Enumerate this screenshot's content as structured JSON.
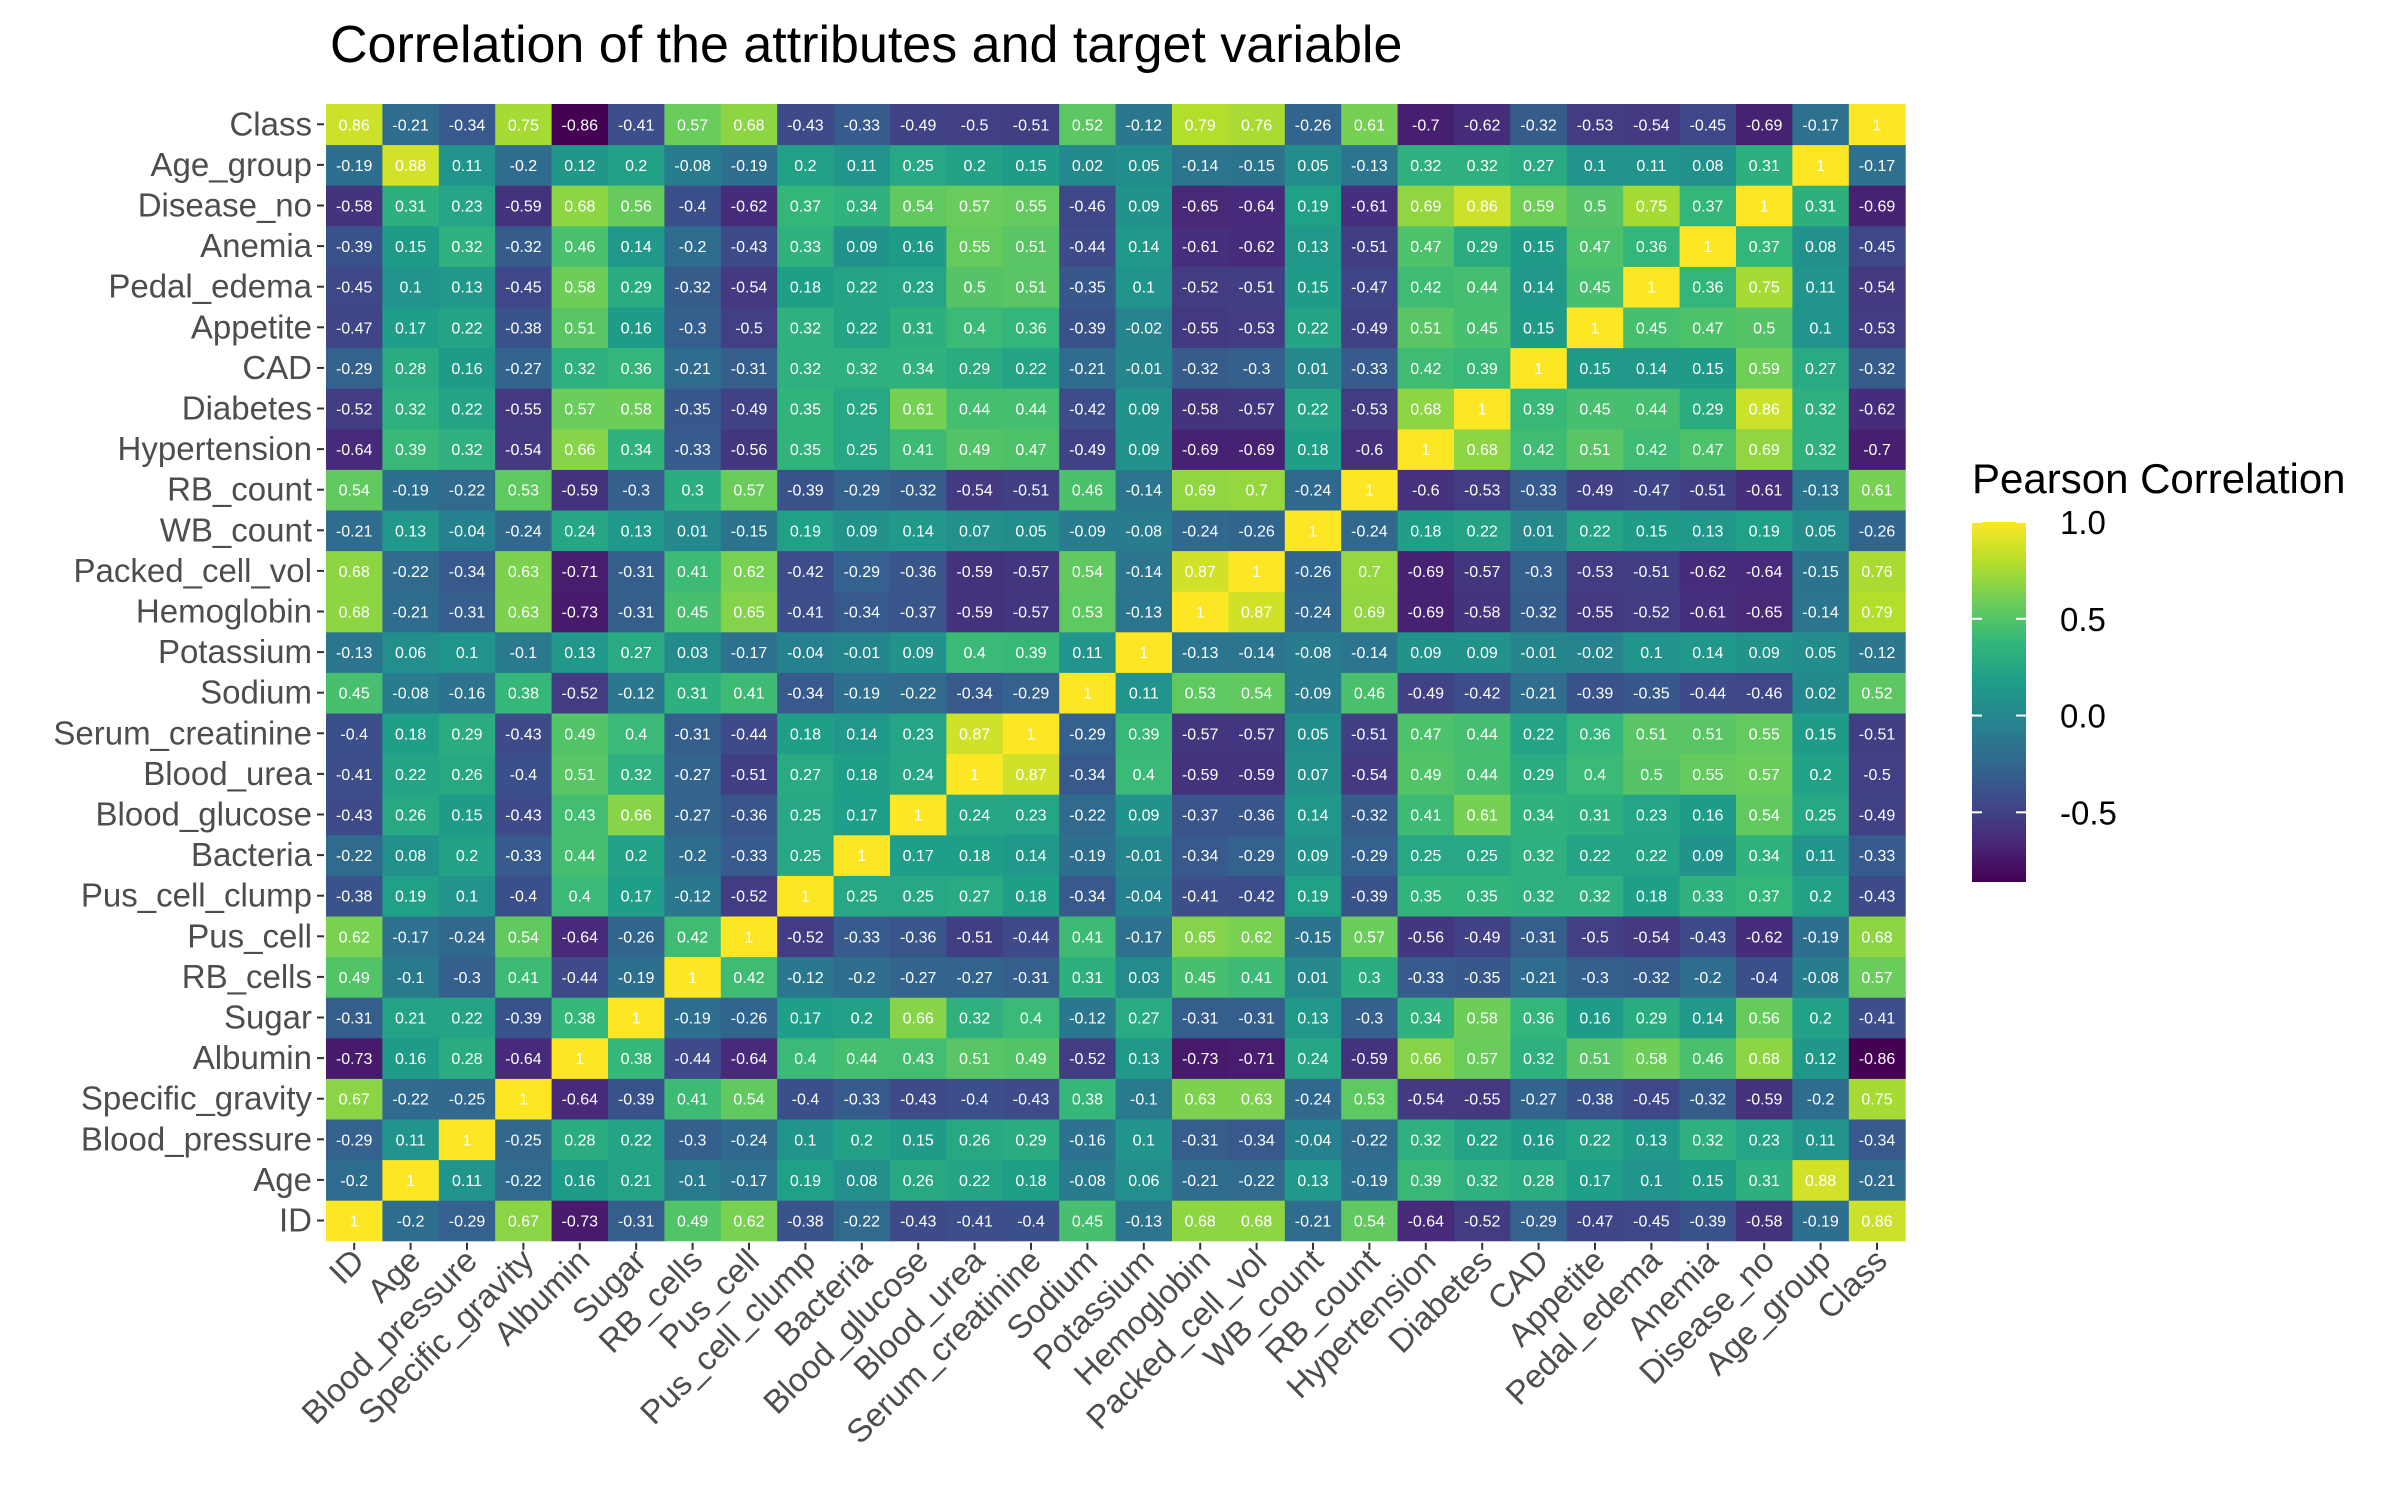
{
  "chart_data": {
    "type": "heatmap",
    "title": "Correlation of the attributes and target variable",
    "xlabel": "",
    "ylabel": "",
    "variables": [
      "ID",
      "Age",
      "Blood_pressure",
      "Specific_gravity",
      "Albumin",
      "Sugar",
      "RB_cells",
      "Pus_cell",
      "Pus_cell_clump",
      "Bacteria",
      "Blood_glucose",
      "Blood_urea",
      "Serum_creatinine",
      "Sodium",
      "Potassium",
      "Hemoglobin",
      "Packed_cell_vol",
      "WB_count",
      "RB_count",
      "Hypertension",
      "Diabetes",
      "CAD",
      "Appetite",
      "Pedal_edema",
      "Anemia",
      "Disease_no",
      "Age_group",
      "Class"
    ],
    "matrix": [
      [
        "1",
        "-0.2",
        "-0.29",
        "0.67",
        "-0.73",
        "-0.31",
        "0.49",
        "0.62",
        "-0.38",
        "-0.22",
        "-0.43",
        "-0.41",
        "-0.4",
        "0.45",
        "-0.13",
        "0.68",
        "0.68",
        "-0.21",
        "0.54",
        "-0.64",
        "-0.52",
        "-0.29",
        "-0.47",
        "-0.45",
        "-0.39",
        "-0.58",
        "-0.19",
        "0.86"
      ],
      [
        "-0.2",
        "1",
        "0.11",
        "-0.22",
        "0.16",
        "0.21",
        "-0.1",
        "-0.17",
        "0.19",
        "0.08",
        "0.26",
        "0.22",
        "0.18",
        "-0.08",
        "0.06",
        "-0.21",
        "-0.22",
        "0.13",
        "-0.19",
        "0.39",
        "0.32",
        "0.28",
        "0.17",
        "0.1",
        "0.15",
        "0.31",
        "0.88",
        "-0.21"
      ],
      [
        "-0.29",
        "0.11",
        "1",
        "-0.25",
        "0.28",
        "0.22",
        "-0.3",
        "-0.24",
        "0.1",
        "0.2",
        "0.15",
        "0.26",
        "0.29",
        "-0.16",
        "0.1",
        "-0.31",
        "-0.34",
        "-0.04",
        "-0.22",
        "0.32",
        "0.22",
        "0.16",
        "0.22",
        "0.13",
        "0.32",
        "0.23",
        "0.11",
        "-0.34"
      ],
      [
        "0.67",
        "-0.22",
        "-0.25",
        "1",
        "-0.64",
        "-0.39",
        "0.41",
        "0.54",
        "-0.4",
        "-0.33",
        "-0.43",
        "-0.4",
        "-0.43",
        "0.38",
        "-0.1",
        "0.63",
        "0.63",
        "-0.24",
        "0.53",
        "-0.54",
        "-0.55",
        "-0.27",
        "-0.38",
        "-0.45",
        "-0.32",
        "-0.59",
        "-0.2",
        "0.75"
      ],
      [
        "-0.73",
        "0.16",
        "0.28",
        "-0.64",
        "1",
        "0.38",
        "-0.44",
        "-0.64",
        "0.4",
        "0.44",
        "0.43",
        "0.51",
        "0.49",
        "-0.52",
        "0.13",
        "-0.73",
        "-0.71",
        "0.24",
        "-0.59",
        "0.66",
        "0.57",
        "0.32",
        "0.51",
        "0.58",
        "0.46",
        "0.68",
        "0.12",
        "-0.86"
      ],
      [
        "-0.31",
        "0.21",
        "0.22",
        "-0.39",
        "0.38",
        "1",
        "-0.19",
        "-0.26",
        "0.17",
        "0.2",
        "0.66",
        "0.32",
        "0.4",
        "-0.12",
        "0.27",
        "-0.31",
        "-0.31",
        "0.13",
        "-0.3",
        "0.34",
        "0.58",
        "0.36",
        "0.16",
        "0.29",
        "0.14",
        "0.56",
        "0.2",
        "-0.41"
      ],
      [
        "0.49",
        "-0.1",
        "-0.3",
        "0.41",
        "-0.44",
        "-0.19",
        "1",
        "0.42",
        "-0.12",
        "-0.2",
        "-0.27",
        "-0.27",
        "-0.31",
        "0.31",
        "0.03",
        "0.45",
        "0.41",
        "0.01",
        "0.3",
        "-0.33",
        "-0.35",
        "-0.21",
        "-0.3",
        "-0.32",
        "-0.2",
        "-0.4",
        "-0.08",
        "0.57"
      ],
      [
        "0.62",
        "-0.17",
        "-0.24",
        "0.54",
        "-0.64",
        "-0.26",
        "0.42",
        "1",
        "-0.52",
        "-0.33",
        "-0.36",
        "-0.51",
        "-0.44",
        "0.41",
        "-0.17",
        "0.65",
        "0.62",
        "-0.15",
        "0.57",
        "-0.56",
        "-0.49",
        "-0.31",
        "-0.5",
        "-0.54",
        "-0.43",
        "-0.62",
        "-0.19",
        "0.68"
      ],
      [
        "-0.38",
        "0.19",
        "0.1",
        "-0.4",
        "0.4",
        "0.17",
        "-0.12",
        "-0.52",
        "1",
        "0.25",
        "0.25",
        "0.27",
        "0.18",
        "-0.34",
        "-0.04",
        "-0.41",
        "-0.42",
        "0.19",
        "-0.39",
        "0.35",
        "0.35",
        "0.32",
        "0.32",
        "0.18",
        "0.33",
        "0.37",
        "0.2",
        "-0.43"
      ],
      [
        "-0.22",
        "0.08",
        "0.2",
        "-0.33",
        "0.44",
        "0.2",
        "-0.2",
        "-0.33",
        "0.25",
        "1",
        "0.17",
        "0.18",
        "0.14",
        "-0.19",
        "-0.01",
        "-0.34",
        "-0.29",
        "0.09",
        "-0.29",
        "0.25",
        "0.25",
        "0.32",
        "0.22",
        "0.22",
        "0.09",
        "0.34",
        "0.11",
        "-0.33"
      ],
      [
        "-0.43",
        "0.26",
        "0.15",
        "-0.43",
        "0.43",
        "0.66",
        "-0.27",
        "-0.36",
        "0.25",
        "0.17",
        "1",
        "0.24",
        "0.23",
        "-0.22",
        "0.09",
        "-0.37",
        "-0.36",
        "0.14",
        "-0.32",
        "0.41",
        "0.61",
        "0.34",
        "0.31",
        "0.23",
        "0.16",
        "0.54",
        "0.25",
        "-0.49"
      ],
      [
        "-0.41",
        "0.22",
        "0.26",
        "-0.4",
        "0.51",
        "0.32",
        "-0.27",
        "-0.51",
        "0.27",
        "0.18",
        "0.24",
        "1",
        "0.87",
        "-0.34",
        "0.4",
        "-0.59",
        "-0.59",
        "0.07",
        "-0.54",
        "0.49",
        "0.44",
        "0.29",
        "0.4",
        "0.5",
        "0.55",
        "0.57",
        "0.2",
        "-0.5"
      ],
      [
        "-0.4",
        "0.18",
        "0.29",
        "-0.43",
        "0.49",
        "0.4",
        "-0.31",
        "-0.44",
        "0.18",
        "0.14",
        "0.23",
        "0.87",
        "1",
        "-0.29",
        "0.39",
        "-0.57",
        "-0.57",
        "0.05",
        "-0.51",
        "0.47",
        "0.44",
        "0.22",
        "0.36",
        "0.51",
        "0.51",
        "0.55",
        "0.15",
        "-0.51"
      ],
      [
        "0.45",
        "-0.08",
        "-0.16",
        "0.38",
        "-0.52",
        "-0.12",
        "0.31",
        "0.41",
        "-0.34",
        "-0.19",
        "-0.22",
        "-0.34",
        "-0.29",
        "1",
        "0.11",
        "0.53",
        "0.54",
        "-0.09",
        "0.46",
        "-0.49",
        "-0.42",
        "-0.21",
        "-0.39",
        "-0.35",
        "-0.44",
        "-0.46",
        "0.02",
        "0.52"
      ],
      [
        "-0.13",
        "0.06",
        "0.1",
        "-0.1",
        "0.13",
        "0.27",
        "0.03",
        "-0.17",
        "-0.04",
        "-0.01",
        "0.09",
        "0.4",
        "0.39",
        "0.11",
        "1",
        "-0.13",
        "-0.14",
        "-0.08",
        "-0.14",
        "0.09",
        "0.09",
        "-0.01",
        "-0.02",
        "0.1",
        "0.14",
        "0.09",
        "0.05",
        "-0.12"
      ],
      [
        "0.68",
        "-0.21",
        "-0.31",
        "0.63",
        "-0.73",
        "-0.31",
        "0.45",
        "0.65",
        "-0.41",
        "-0.34",
        "-0.37",
        "-0.59",
        "-0.57",
        "0.53",
        "-0.13",
        "1",
        "0.87",
        "-0.24",
        "0.69",
        "-0.69",
        "-0.58",
        "-0.32",
        "-0.55",
        "-0.52",
        "-0.61",
        "-0.65",
        "-0.14",
        "0.79"
      ],
      [
        "0.68",
        "-0.22",
        "-0.34",
        "0.63",
        "-0.71",
        "-0.31",
        "0.41",
        "0.62",
        "-0.42",
        "-0.29",
        "-0.36",
        "-0.59",
        "-0.57",
        "0.54",
        "-0.14",
        "0.87",
        "1",
        "-0.26",
        "0.7",
        "-0.69",
        "-0.57",
        "-0.3",
        "-0.53",
        "-0.51",
        "-0.62",
        "-0.64",
        "-0.15",
        "0.76"
      ],
      [
        "-0.21",
        "0.13",
        "-0.04",
        "-0.24",
        "0.24",
        "0.13",
        "0.01",
        "-0.15",
        "0.19",
        "0.09",
        "0.14",
        "0.07",
        "0.05",
        "-0.09",
        "-0.08",
        "-0.24",
        "-0.26",
        "1",
        "-0.24",
        "0.18",
        "0.22",
        "0.01",
        "0.22",
        "0.15",
        "0.13",
        "0.19",
        "0.05",
        "-0.26"
      ],
      [
        "0.54",
        "-0.19",
        "-0.22",
        "0.53",
        "-0.59",
        "-0.3",
        "0.3",
        "0.57",
        "-0.39",
        "-0.29",
        "-0.32",
        "-0.54",
        "-0.51",
        "0.46",
        "-0.14",
        "0.69",
        "0.7",
        "-0.24",
        "1",
        "-0.6",
        "-0.53",
        "-0.33",
        "-0.49",
        "-0.47",
        "-0.51",
        "-0.61",
        "-0.13",
        "0.61"
      ],
      [
        "-0.64",
        "0.39",
        "0.32",
        "-0.54",
        "0.66",
        "0.34",
        "-0.33",
        "-0.56",
        "0.35",
        "0.25",
        "0.41",
        "0.49",
        "0.47",
        "-0.49",
        "0.09",
        "-0.69",
        "-0.69",
        "0.18",
        "-0.6",
        "1",
        "0.68",
        "0.42",
        "0.51",
        "0.42",
        "0.47",
        "0.69",
        "0.32",
        "-0.7"
      ],
      [
        "-0.52",
        "0.32",
        "0.22",
        "-0.55",
        "0.57",
        "0.58",
        "-0.35",
        "-0.49",
        "0.35",
        "0.25",
        "0.61",
        "0.44",
        "0.44",
        "-0.42",
        "0.09",
        "-0.58",
        "-0.57",
        "0.22",
        "-0.53",
        "0.68",
        "1",
        "0.39",
        "0.45",
        "0.44",
        "0.29",
        "0.86",
        "0.32",
        "-0.62"
      ],
      [
        "-0.29",
        "0.28",
        "0.16",
        "-0.27",
        "0.32",
        "0.36",
        "-0.21",
        "-0.31",
        "0.32",
        "0.32",
        "0.34",
        "0.29",
        "0.22",
        "-0.21",
        "-0.01",
        "-0.32",
        "-0.3",
        "0.01",
        "-0.33",
        "0.42",
        "0.39",
        "1",
        "0.15",
        "0.14",
        "0.15",
        "0.59",
        "0.27",
        "-0.32"
      ],
      [
        "-0.47",
        "0.17",
        "0.22",
        "-0.38",
        "0.51",
        "0.16",
        "-0.3",
        "-0.5",
        "0.32",
        "0.22",
        "0.31",
        "0.4",
        "0.36",
        "-0.39",
        "-0.02",
        "-0.55",
        "-0.53",
        "0.22",
        "-0.49",
        "0.51",
        "0.45",
        "0.15",
        "1",
        "0.45",
        "0.47",
        "0.5",
        "0.1",
        "-0.53"
      ],
      [
        "-0.45",
        "0.1",
        "0.13",
        "-0.45",
        "0.58",
        "0.29",
        "-0.32",
        "-0.54",
        "0.18",
        "0.22",
        "0.23",
        "0.5",
        "0.51",
        "-0.35",
        "0.1",
        "-0.52",
        "-0.51",
        "0.15",
        "-0.47",
        "0.42",
        "0.44",
        "0.14",
        "0.45",
        "1",
        "0.36",
        "0.75",
        "0.11",
        "-0.54"
      ],
      [
        "-0.39",
        "0.15",
        "0.32",
        "-0.32",
        "0.46",
        "0.14",
        "-0.2",
        "-0.43",
        "0.33",
        "0.09",
        "0.16",
        "0.55",
        "0.51",
        "-0.44",
        "0.14",
        "-0.61",
        "-0.62",
        "0.13",
        "-0.51",
        "0.47",
        "0.29",
        "0.15",
        "0.47",
        "0.36",
        "1",
        "0.37",
        "0.08",
        "-0.45"
      ],
      [
        "-0.58",
        "0.31",
        "0.23",
        "-0.59",
        "0.68",
        "0.56",
        "-0.4",
        "-0.62",
        "0.37",
        "0.34",
        "0.54",
        "0.57",
        "0.55",
        "-0.46",
        "0.09",
        "-0.65",
        "-0.64",
        "0.19",
        "-0.61",
        "0.69",
        "0.86",
        "0.59",
        "0.5",
        "0.75",
        "0.37",
        "1",
        "0.31",
        "-0.69"
      ],
      [
        "-0.19",
        "0.88",
        "0.11",
        "-0.2",
        "0.12",
        "0.2",
        "-0.08",
        "-0.19",
        "0.2",
        "0.11",
        "0.25",
        "0.2",
        "0.15",
        "0.02",
        "0.05",
        "-0.14",
        "-0.15",
        "0.05",
        "-0.13",
        "0.32",
        "0.32",
        "0.27",
        "0.1",
        "0.11",
        "0.08",
        "0.31",
        "1",
        "-0.17"
      ],
      [
        "0.86",
        "-0.21",
        "-0.34",
        "0.75",
        "-0.86",
        "-0.41",
        "0.57",
        "0.68",
        "-0.43",
        "-0.33",
        "-0.49",
        "-0.5",
        "-0.51",
        "0.52",
        "-0.12",
        "0.79",
        "0.76",
        "-0.26",
        "0.61",
        "-0.7",
        "-0.62",
        "-0.32",
        "-0.53",
        "-0.54",
        "-0.45",
        "-0.69",
        "-0.17",
        "1"
      ]
    ],
    "scale": {
      "min": -0.86,
      "max": 1.0,
      "palette": "viridis"
    },
    "legend": {
      "title": "Pearson Correlation",
      "ticks": [
        {
          "value": 1.0,
          "label": "1.0"
        },
        {
          "value": 0.5,
          "label": "0.5"
        },
        {
          "value": 0.0,
          "label": "0.0"
        },
        {
          "value": -0.5,
          "label": "-0.5"
        }
      ],
      "placement": "right"
    },
    "grid": false
  }
}
